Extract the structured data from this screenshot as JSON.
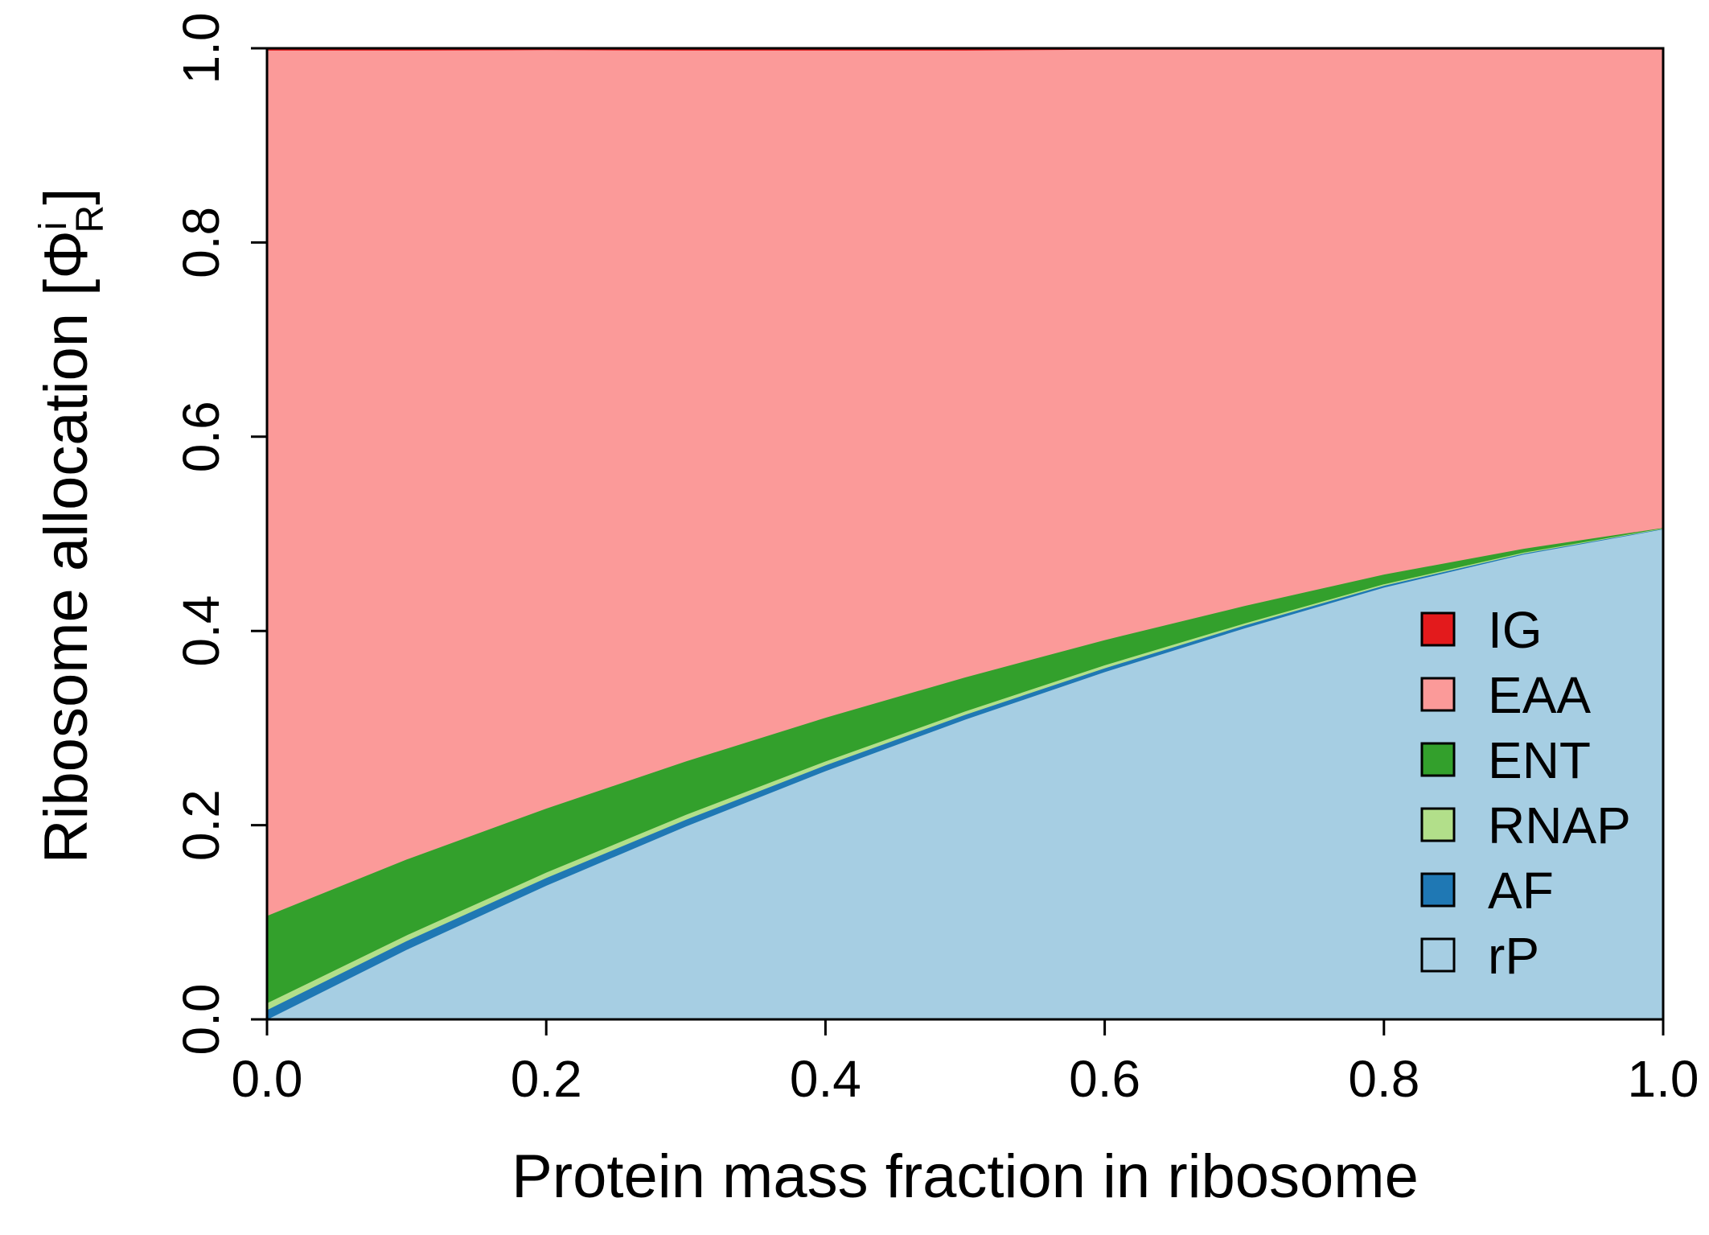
{
  "chart_data": {
    "type": "area",
    "stacked": true,
    "xlabel": "Protein mass fraction in ribosome",
    "ylabel": "Ribosome allocation [Φ",
    "ylabel_subscript": "R",
    "ylabel_superscript": "i",
    "ylabel_close": "]",
    "xlim": [
      0,
      1
    ],
    "ylim": [
      0,
      1
    ],
    "x_ticks": [
      "0.0",
      "0.2",
      "0.4",
      "0.6",
      "0.8",
      "1.0"
    ],
    "y_ticks": [
      "0.0",
      "0.2",
      "0.4",
      "0.6",
      "0.8",
      "1.0"
    ],
    "legend_position": "bottom-right",
    "x": [
      0.0,
      0.1,
      0.2,
      0.3,
      0.4,
      0.5,
      0.6,
      0.7,
      0.8,
      0.9,
      1.0
    ],
    "series": [
      {
        "name": "rP",
        "color": "#a6cee3",
        "values": [
          0.0,
          0.072,
          0.138,
          0.199,
          0.256,
          0.309,
          0.358,
          0.403,
          0.445,
          0.479,
          0.505
        ]
      },
      {
        "name": "AF",
        "color": "#1f78b4",
        "values": [
          0.01,
          0.009,
          0.008,
          0.007,
          0.006,
          0.005,
          0.004,
          0.003,
          0.002,
          0.001,
          0.0005
        ]
      },
      {
        "name": "RNAP",
        "color": "#b2df8a",
        "values": [
          0.007,
          0.006,
          0.0055,
          0.005,
          0.004,
          0.0035,
          0.003,
          0.002,
          0.0015,
          0.001,
          0.0005
        ]
      },
      {
        "name": "ENT",
        "color": "#33a02c",
        "values": [
          0.09,
          0.078,
          0.066,
          0.055,
          0.045,
          0.035,
          0.026,
          0.018,
          0.01,
          0.004,
          0.0005
        ]
      },
      {
        "name": "EAA",
        "color": "#fb9a99",
        "values": [
          0.891,
          0.833,
          0.781,
          0.732,
          0.687,
          0.6455,
          0.608,
          0.573,
          0.5405,
          0.514,
          0.4925
        ]
      },
      {
        "name": "IG",
        "color": "#e31a1c",
        "values": [
          0.002,
          0.002,
          0.0015,
          0.002,
          0.002,
          0.002,
          0.001,
          0.001,
          0.001,
          0.001,
          0.001
        ]
      }
    ]
  }
}
